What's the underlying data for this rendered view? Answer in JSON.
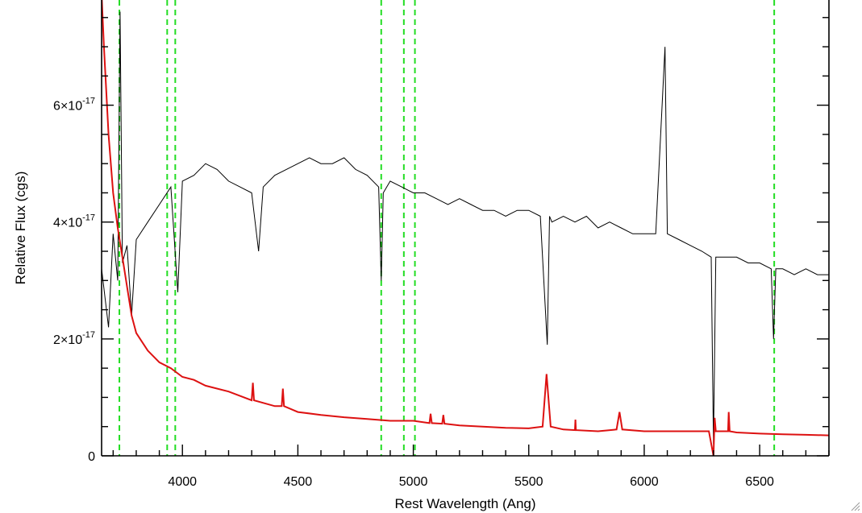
{
  "chart_data": {
    "type": "line",
    "title": "",
    "xlabel": "Rest Wavelength (Ang)",
    "ylabel": "Relative Flux (cgs)",
    "xlim": [
      3650,
      6800
    ],
    "ylim": [
      0,
      7.8e-17
    ],
    "xticks": [
      {
        "value": 4000,
        "label": "4000"
      },
      {
        "value": 4500,
        "label": "4500"
      },
      {
        "value": 5000,
        "label": "5000"
      },
      {
        "value": 5500,
        "label": "5500"
      },
      {
        "value": 6000,
        "label": "6000"
      },
      {
        "value": 6500,
        "label": "6500"
      }
    ],
    "yticks": [
      {
        "value": 0,
        "mantissa": "0",
        "exp": ""
      },
      {
        "value": 2e-17,
        "mantissa": "2×10",
        "exp": "-17"
      },
      {
        "value": 4e-17,
        "mantissa": "4×10",
        "exp": "-17"
      },
      {
        "value": 6e-17,
        "mantissa": "6×10",
        "exp": "-17"
      }
    ],
    "reference_lines": [
      3727,
      3934,
      3969,
      4861,
      4959,
      5007,
      6563
    ],
    "reference_line_color": "#22dd22",
    "series": [
      {
        "color": "#000000",
        "x": [
          3650,
          3680,
          3700,
          3720,
          3730,
          3740,
          3760,
          3780,
          3800,
          3850,
          3900,
          3950,
          3980,
          4000,
          4050,
          4100,
          4150,
          4200,
          4250,
          4300,
          4330,
          4350,
          4400,
          4450,
          4500,
          4550,
          4600,
          4650,
          4700,
          4750,
          4800,
          4850,
          4861,
          4870,
          4900,
          4950,
          5000,
          5050,
          5100,
          5150,
          5200,
          5250,
          5300,
          5350,
          5400,
          5450,
          5500,
          5550,
          5580,
          5590,
          5600,
          5650,
          5700,
          5750,
          5800,
          5850,
          5900,
          5950,
          6000,
          6050,
          6090,
          6100,
          6150,
          6200,
          6250,
          6290,
          6300,
          6310,
          6350,
          6400,
          6450,
          6500,
          6550,
          6560,
          6570,
          6600,
          6650,
          6700,
          6750,
          6800
        ],
        "y": [
          3.2e-17,
          2.2e-17,
          3.8e-17,
          3e-17,
          7.6e-17,
          3.3e-17,
          3.6e-17,
          2.4e-17,
          3.7e-17,
          4e-17,
          4.3e-17,
          4.6e-17,
          2.8e-17,
          4.7e-17,
          4.8e-17,
          5e-17,
          4.9e-17,
          4.7e-17,
          4.6e-17,
          4.5e-17,
          3.5e-17,
          4.6e-17,
          4.8e-17,
          4.9e-17,
          5e-17,
          5.1e-17,
          5e-17,
          5e-17,
          5.1e-17,
          4.9e-17,
          4.8e-17,
          4.6e-17,
          3e-17,
          4.5e-17,
          4.7e-17,
          4.6e-17,
          4.5e-17,
          4.5e-17,
          4.4e-17,
          4.3e-17,
          4.4e-17,
          4.3e-17,
          4.2e-17,
          4.2e-17,
          4.1e-17,
          4.2e-17,
          4.2e-17,
          4.1e-17,
          1.9e-17,
          4.1e-17,
          4e-17,
          4.1e-17,
          4e-17,
          4.1e-17,
          3.9e-17,
          4e-17,
          3.9e-17,
          3.8e-17,
          3.8e-17,
          3.8e-17,
          7e-17,
          3.8e-17,
          3.7e-17,
          3.6e-17,
          3.5e-17,
          3.4e-17,
          2e-18,
          3.4e-17,
          3.4e-17,
          3.4e-17,
          3.3e-17,
          3.3e-17,
          3.2e-17,
          2e-17,
          3.2e-17,
          3.2e-17,
          3.1e-17,
          3.2e-17,
          3.1e-17,
          3.1e-17
        ]
      },
      {
        "color": "#dd1111",
        "x": [
          3650,
          3660,
          3680,
          3700,
          3720,
          3740,
          3760,
          3780,
          3800,
          3850,
          3900,
          3950,
          4000,
          4050,
          4100,
          4200,
          4300,
          4305,
          4310,
          4400,
          4430,
          4435,
          4440,
          4500,
          4600,
          4700,
          4800,
          4900,
          5000,
          5070,
          5075,
          5080,
          5125,
          5130,
          5135,
          5200,
          5300,
          5400,
          5500,
          5560,
          5577,
          5595,
          5650,
          5700,
          5702,
          5704,
          5800,
          5880,
          5893,
          5905,
          6000,
          6100,
          6200,
          6280,
          6300,
          6305,
          6310,
          6363,
          6366,
          6370,
          6400,
          6500,
          6600,
          6700,
          6800
        ],
        "y": [
          7.9e-17,
          7e-17,
          5.5e-17,
          4.5e-17,
          3.9e-17,
          3.4e-17,
          2.9e-17,
          2.4e-17,
          2.1e-17,
          1.8e-17,
          1.6e-17,
          1.5e-17,
          1.35e-17,
          1.3e-17,
          1.2e-17,
          1.1e-17,
          9.5e-18,
          1.25e-17,
          9.5e-18,
          8.5e-18,
          8.5e-18,
          1.15e-17,
          8.5e-18,
          7.5e-18,
          7e-18,
          6.6e-18,
          6.3e-18,
          6e-18,
          6e-18,
          5.6e-18,
          7.2e-18,
          5.6e-18,
          5.5e-18,
          7e-18,
          5.5e-18,
          5.2e-18,
          5e-18,
          4.8e-18,
          4.7e-18,
          5e-18,
          1.4e-17,
          5e-18,
          4.5e-18,
          4.4e-18,
          6.2e-18,
          4.4e-18,
          4.2e-18,
          4.5e-18,
          7.5e-18,
          4.5e-18,
          4.2e-18,
          4.2e-18,
          4.2e-18,
          4.2e-18,
          0.0,
          6.5e-18,
          4.2e-18,
          4.2e-18,
          7.5e-18,
          4.2e-18,
          4e-18,
          3.8e-18,
          3.7e-18,
          3.6e-18,
          3.5e-18
        ]
      }
    ]
  }
}
